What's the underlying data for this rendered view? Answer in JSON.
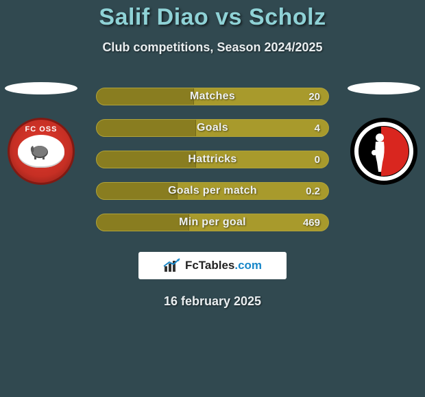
{
  "colors": {
    "page_background": "#314950",
    "title_color": "#8fd2d6",
    "text_color": "#e9eef0",
    "bar_background": "#a89a2c",
    "bar_border": "#b0a33a",
    "bar_fill": "#897d20",
    "branding_bg": "#ffffff",
    "branding_accent": "#1887c9"
  },
  "title": "Salif Diao vs Scholz",
  "subtitle": "Club competitions, Season 2024/2025",
  "date": "16 february 2025",
  "branding": {
    "name": "FcTables",
    "domain": ".com"
  },
  "players": {
    "left": {
      "club_label": "FC OSS"
    },
    "right": {
      "club_label": ""
    }
  },
  "stats": [
    {
      "label": "Matches",
      "value": "20",
      "fill_pct": 42
    },
    {
      "label": "Goals",
      "value": "4",
      "fill_pct": 43
    },
    {
      "label": "Hattricks",
      "value": "0",
      "fill_pct": 43
    },
    {
      "label": "Goals per match",
      "value": "0.2",
      "fill_pct": 35
    },
    {
      "label": "Min per goal",
      "value": "469",
      "fill_pct": 40
    }
  ]
}
